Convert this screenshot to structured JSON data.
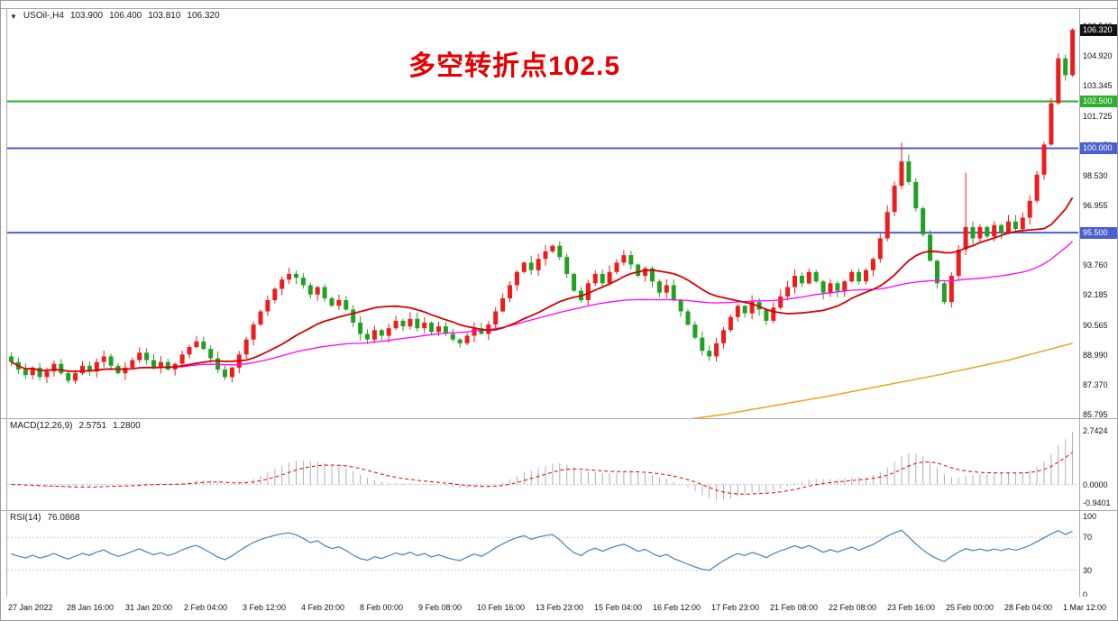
{
  "main_panel": {
    "dropdown_icon": "▼",
    "symbol": "USOil-,H4",
    "ohlc": {
      "open": "103.900",
      "high": "106.400",
      "low": "103.810",
      "close": "106.320"
    },
    "annotation": {
      "text": "多空转折点102.5",
      "color": "#e60000"
    },
    "price_axis_ticks": [
      "106.540",
      "104.920",
      "103.345",
      "101.725",
      "100.150",
      "98.530",
      "96.955",
      "95.335",
      "93.760",
      "92.185",
      "90.565",
      "88.990",
      "87.370",
      "85.795"
    ],
    "price_lines": [
      {
        "label": "102.500",
        "price": 102.5,
        "color": "#2fae2f"
      },
      {
        "label": "100.000",
        "price": 100.0,
        "color": "#4a5fd0"
      },
      {
        "label": "95.500",
        "price": 95.5,
        "color": "#4a5fd0"
      }
    ],
    "current_price_badge": {
      "label": "106.320",
      "price": 106.32,
      "bg": "#111111"
    }
  },
  "macd_panel": {
    "name": "MACD(12,26,9)",
    "value": "2.5751",
    "signal": "1.2800",
    "axis_ticks": [
      "2.7424",
      "0.0000",
      "-0.9401"
    ]
  },
  "rsi_panel": {
    "name": "RSI(14)",
    "value": "76.0868",
    "axis_ticks": [
      "100",
      "70",
      "30",
      "0"
    ]
  },
  "time_axis": {
    "labels": [
      "27 Jan 2022",
      "28 Jan 16:00",
      "31 Jan 20:00",
      "2 Feb 04:00",
      "3 Feb 12:00",
      "4 Feb 20:00",
      "8 Feb 00:00",
      "9 Feb 08:00",
      "10 Feb 16:00",
      "13 Feb 23:00",
      "15 Feb 04:00",
      "16 Feb 12:00",
      "17 Feb 23:00",
      "21 Feb 08:00",
      "22 Feb 08:00",
      "23 Feb 16:00",
      "25 Feb 00:00",
      "28 Feb 04:00",
      "1 Mar 12:00"
    ]
  },
  "chart_data": {
    "type": "candlestick",
    "symbol": "USOil",
    "timeframe": "H4",
    "price_axis_range": [
      85.795,
      106.72
    ],
    "horizontal_levels": [
      102.5,
      100.0,
      95.5
    ],
    "last_candle_ohlc": [
      103.9,
      106.4,
      103.81,
      106.32
    ],
    "closes": [
      88.6,
      88.2,
      87.9,
      88.3,
      87.8,
      88.1,
      88.5,
      88.0,
      87.6,
      88.0,
      88.4,
      88.1,
      88.6,
      88.9,
      88.4,
      88.0,
      88.3,
      88.7,
      89.1,
      88.7,
      88.3,
      88.6,
      88.2,
      88.5,
      89.0,
      89.4,
      89.7,
      89.3,
      88.8,
      88.2,
      87.8,
      88.3,
      89.0,
      89.8,
      90.6,
      91.3,
      91.9,
      92.5,
      93.0,
      93.3,
      93.1,
      92.7,
      92.2,
      92.6,
      92.0,
      91.6,
      91.9,
      91.4,
      90.7,
      90.1,
      89.8,
      90.3,
      90.0,
      90.4,
      90.8,
      90.5,
      90.9,
      90.4,
      90.7,
      90.2,
      90.5,
      90.1,
      89.8,
      89.6,
      90.0,
      90.4,
      90.1,
      90.6,
      91.3,
      92.0,
      92.7,
      93.4,
      93.9,
      93.5,
      94.1,
      94.5,
      94.8,
      94.2,
      93.3,
      92.4,
      91.9,
      92.8,
      93.3,
      92.8,
      93.4,
      93.9,
      94.3,
      93.8,
      93.2,
      93.6,
      92.9,
      92.3,
      92.7,
      91.9,
      91.3,
      90.6,
      89.9,
      89.2,
      88.9,
      89.6,
      90.3,
      91.0,
      91.6,
      91.2,
      91.8,
      91.4,
      90.8,
      91.5,
      92.1,
      92.6,
      93.2,
      92.8,
      93.4,
      92.9,
      92.3,
      92.8,
      92.4,
      92.9,
      93.4,
      92.9,
      93.5,
      94.1,
      95.2,
      96.6,
      98.0,
      99.3,
      98.2,
      96.8,
      95.4,
      94.0,
      92.8,
      91.8,
      93.2,
      94.6,
      95.8,
      95.2,
      95.8,
      95.3,
      95.9,
      95.5,
      96.1,
      95.7,
      96.3,
      97.2,
      98.6,
      100.2,
      102.4,
      104.8,
      103.9,
      106.32
    ],
    "wick_overrides": {
      "125": [
        100.3,
        97.8
      ],
      "134": [
        98.7,
        94.3
      ],
      "149": [
        106.4,
        103.81
      ]
    },
    "moving_averages": [
      {
        "name": "fast-ma",
        "color": "#d40000",
        "period": 20
      },
      {
        "name": "mid-ma",
        "color": "#ff00ff",
        "period": 50
      },
      {
        "name": "slow-ma",
        "color": "#eaa520",
        "waypoints": [
          [
            0,
            82.0
          ],
          [
            50,
            83.6
          ],
          [
            80,
            84.8
          ],
          [
            100,
            85.8
          ],
          [
            115,
            86.8
          ],
          [
            130,
            87.9
          ],
          [
            140,
            88.7
          ],
          [
            149,
            89.6
          ]
        ]
      }
    ],
    "indicators": [
      {
        "type": "MACD",
        "params": [
          12,
          26,
          9
        ],
        "current": 2.5751,
        "signal_current": 1.28,
        "axis_max": 2.7424,
        "axis_min": -0.9401
      },
      {
        "type": "RSI",
        "params": [
          14
        ],
        "current": 76.0868,
        "levels": [
          30,
          70
        ],
        "axis_range": [
          0,
          100
        ]
      }
    ],
    "colors": {
      "up": "#ee1c1c",
      "down": "#21a121",
      "ma_fast": "#d40000",
      "ma_mid": "#ff00ff",
      "ma_slow": "#eaa520",
      "macd_hist": "#b0b0b0",
      "macd_signal": "#e00000",
      "rsi": "#4682b4"
    }
  }
}
